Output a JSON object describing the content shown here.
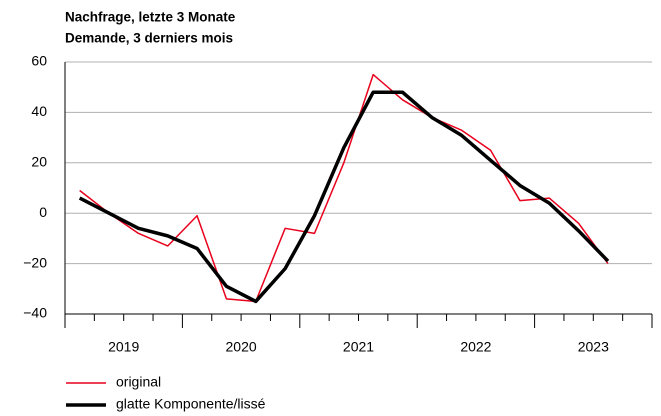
{
  "chart_data": {
    "type": "line",
    "title": [
      "Nachfrage, letzte 3 Monate",
      "Demande, 3 derniers mois"
    ],
    "x": [
      2019.125,
      2019.375,
      2019.625,
      2019.875,
      2020.125,
      2020.375,
      2020.625,
      2020.875,
      2021.125,
      2021.375,
      2021.625,
      2021.875,
      2022.125,
      2022.375,
      2022.625,
      2022.875,
      2023.125,
      2023.375,
      2023.625
    ],
    "series": [
      {
        "name": "original",
        "color": "#e8001c",
        "width": 1.5,
        "values": [
          9,
          0,
          -8,
          -13,
          -1,
          -34,
          -35,
          -6,
          -8,
          20,
          55,
          45,
          38,
          33,
          25,
          5,
          6,
          -4,
          -20
        ]
      },
      {
        "name": "glatte Komponente/lissé",
        "color": "#000000",
        "width": 3.5,
        "values": [
          6,
          0,
          -6,
          -9,
          -14,
          -29,
          -35,
          -22,
          -1,
          26,
          48,
          48,
          38,
          31,
          21,
          11,
          4,
          -7,
          -19
        ]
      }
    ],
    "xlim": [
      2019,
      2024
    ],
    "xticks": [
      2019,
      2020,
      2021,
      2022,
      2023,
      2024
    ],
    "year_labels": [
      {
        "value": 2019.5,
        "label": "2019"
      },
      {
        "value": 2020.5,
        "label": "2020"
      },
      {
        "value": 2021.5,
        "label": "2021"
      },
      {
        "value": 2022.5,
        "label": "2022"
      },
      {
        "value": 2023.5,
        "label": "2023"
      }
    ],
    "ylim": [
      -40,
      60
    ],
    "yticks": [
      {
        "value": -40,
        "label": "−40"
      },
      {
        "value": -20,
        "label": "−20"
      },
      0,
      20,
      40,
      60
    ],
    "grid": true
  }
}
